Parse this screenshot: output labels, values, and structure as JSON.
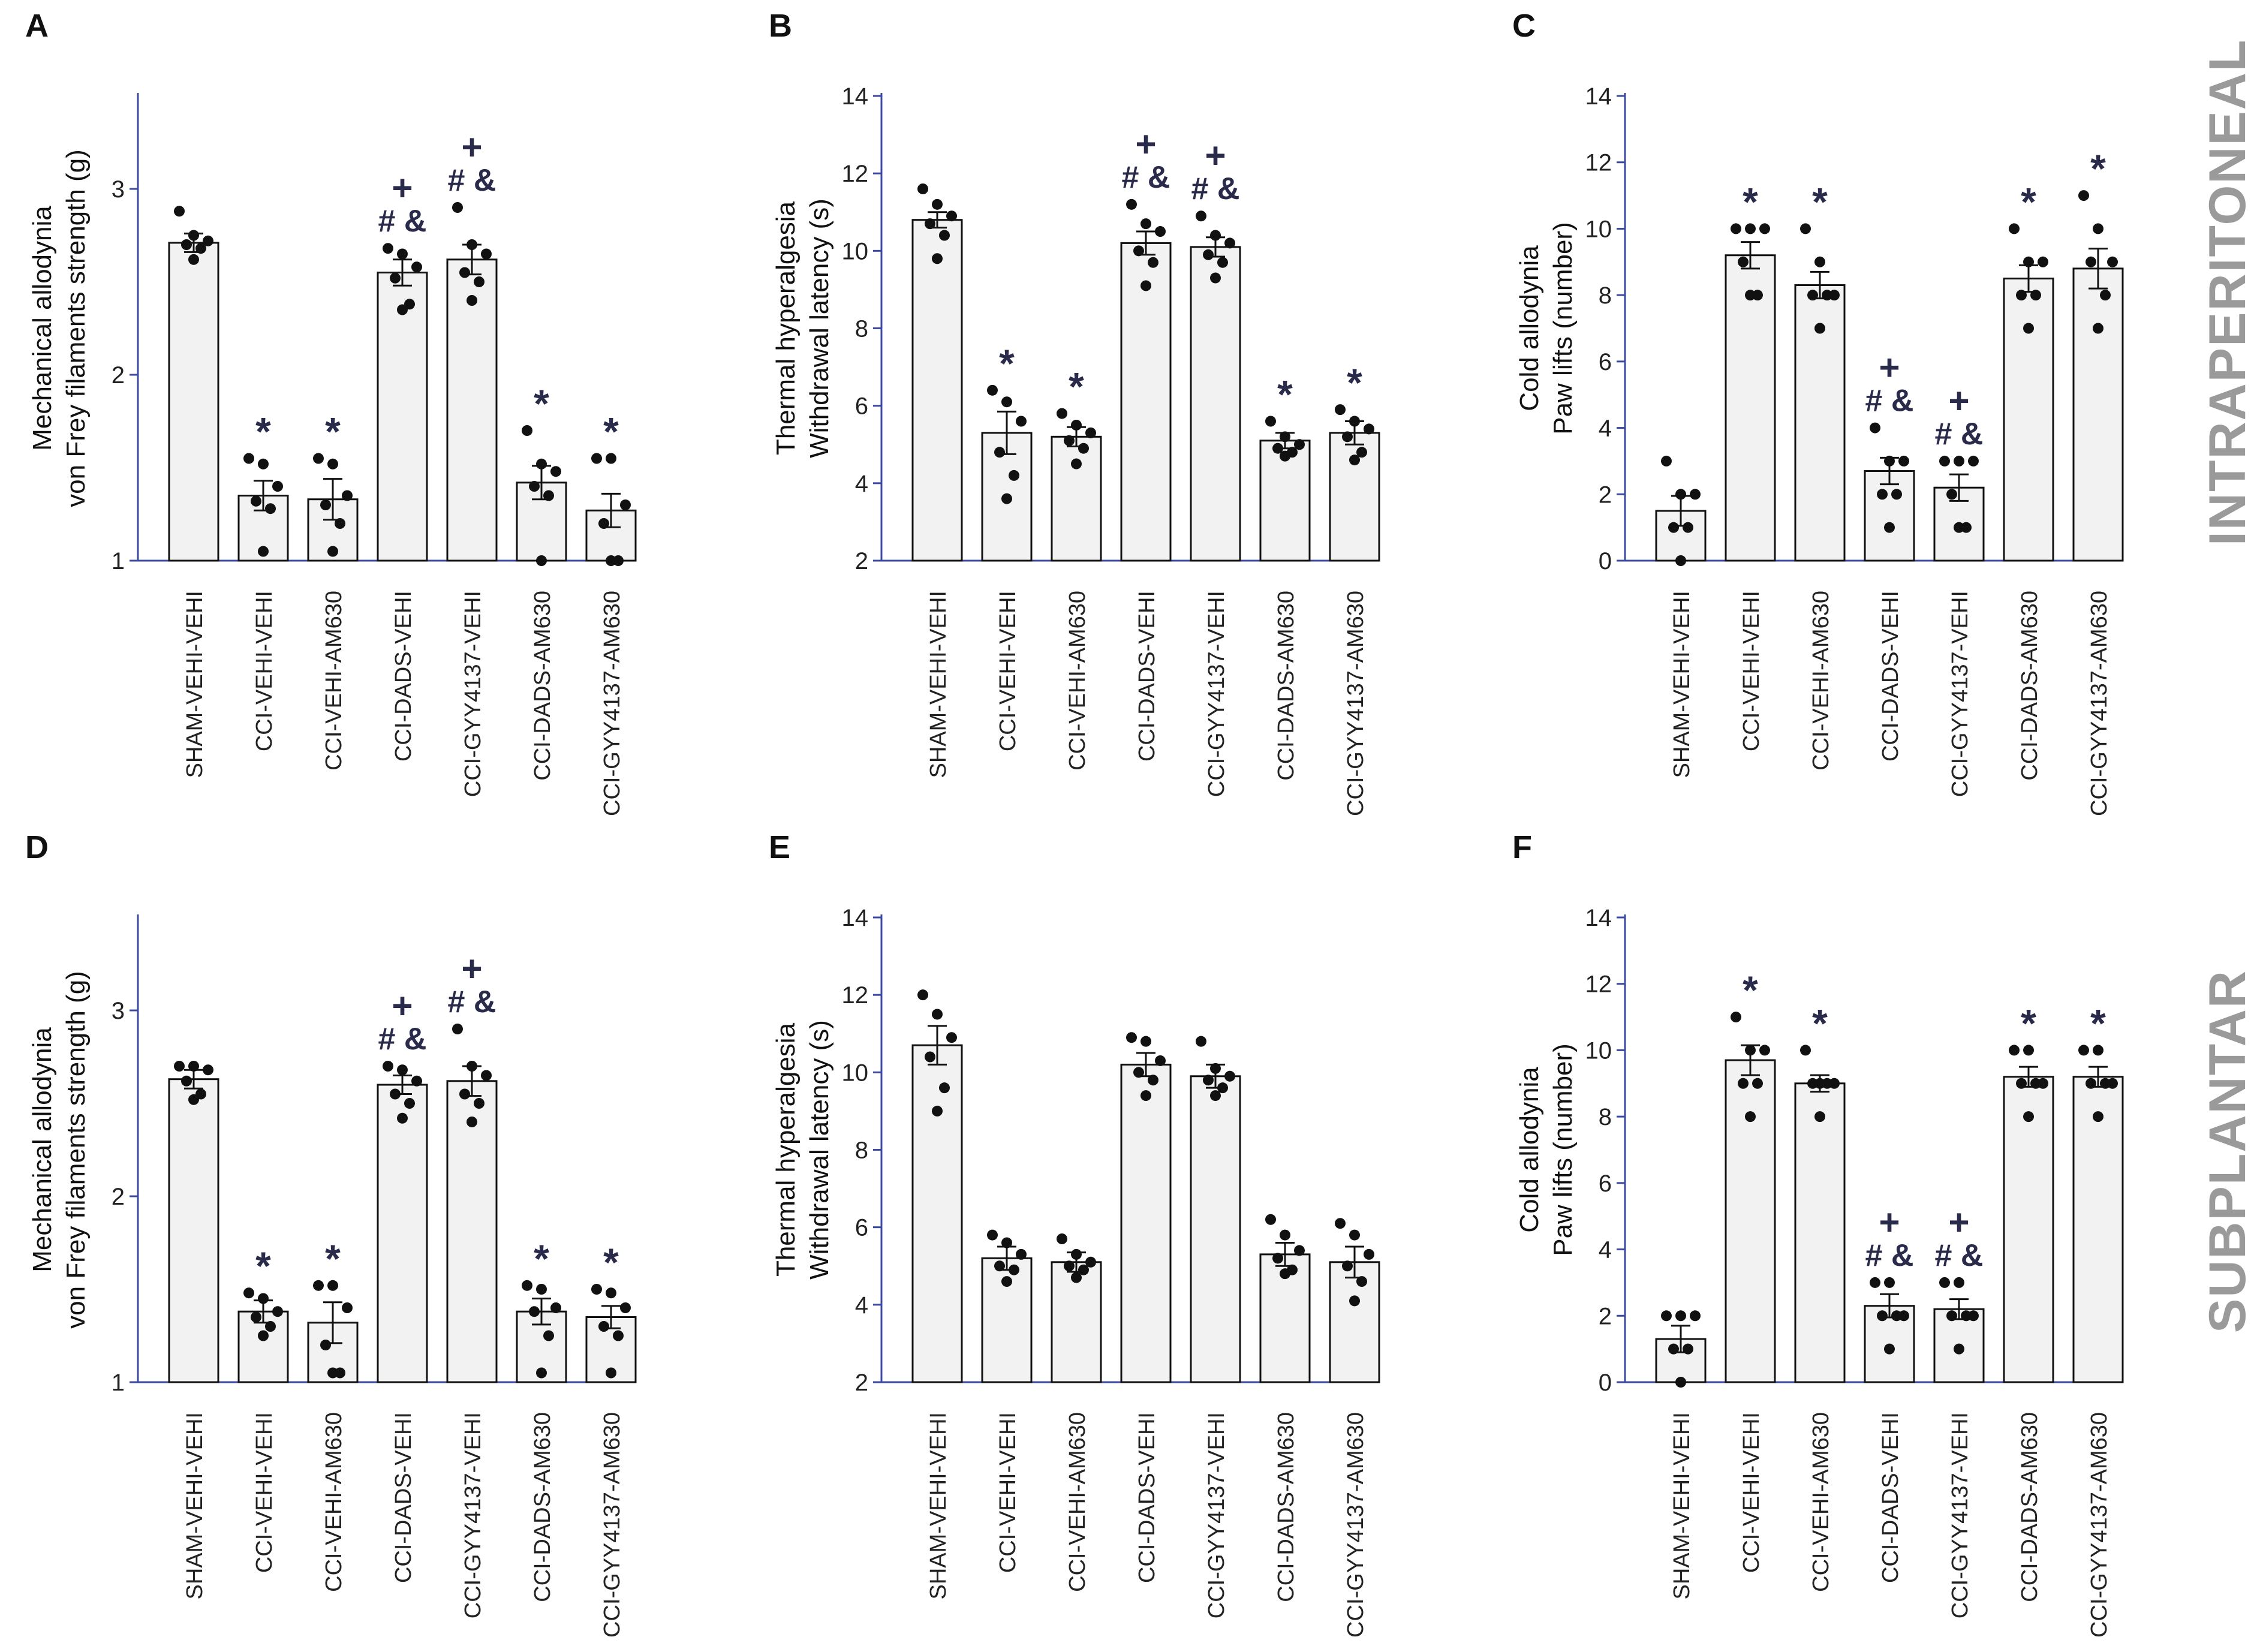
{
  "side_labels": {
    "top": "INTRAPERITONEAL",
    "bottom": "SUBPLANTAR"
  },
  "colors": {
    "axis": "#3b4aa0",
    "bar_fill": "#f2f2f2",
    "bar_stroke": "#111111",
    "marker": "#2a2a4a",
    "side_label": "#9a9a9a"
  },
  "chart_data": [
    {
      "panel": "A",
      "type": "bar",
      "ylabel": [
        "Mechanical allodynia",
        "von Frey filaments strength (g)"
      ],
      "ylim": [
        1,
        3.5
      ],
      "yticks": [
        1,
        2,
        3
      ],
      "categories": [
        "SHAM-VEHI-VEHI",
        "CCI-VEHI-VEHI",
        "CCI-VEHI-AM630",
        "CCI-DADS-VEHI",
        "CCI-GYY4137-VEHI",
        "CCI-DADS-AM630",
        "CCI-GYY4137-AM630"
      ],
      "values": [
        2.71,
        1.35,
        1.33,
        2.55,
        2.62,
        1.42,
        1.27
      ],
      "errors": [
        0.05,
        0.08,
        0.11,
        0.07,
        0.08,
        0.09,
        0.09
      ],
      "points": [
        [
          2.88,
          2.75,
          2.72,
          2.7,
          2.68,
          2.62
        ],
        [
          1.55,
          1.52,
          1.4,
          1.32,
          1.28,
          1.05
        ],
        [
          1.55,
          1.52,
          1.35,
          1.3,
          1.2,
          1.05
        ],
        [
          2.68,
          2.65,
          2.58,
          2.52,
          2.38,
          2.35
        ],
        [
          2.9,
          2.7,
          2.65,
          2.55,
          2.5,
          2.4
        ],
        [
          1.7,
          1.52,
          1.48,
          1.4,
          1.35,
          1.0
        ],
        [
          1.55,
          1.55,
          1.3,
          1.2,
          1.0,
          1.0
        ]
      ],
      "annotations": [
        "",
        "*",
        "*",
        "# & +",
        "# & +",
        "*",
        "*"
      ]
    },
    {
      "panel": "B",
      "type": "bar",
      "ylabel": [
        "Thermal hyperalgesia",
        "Withdrawal latency (s)"
      ],
      "ylim": [
        2,
        14
      ],
      "yticks": [
        2,
        4,
        6,
        8,
        10,
        12,
        14
      ],
      "categories": [
        "SHAM-VEHI-VEHI",
        "CCI-VEHI-VEHI",
        "CCI-VEHI-AM630",
        "CCI-DADS-VEHI",
        "CCI-GYY4137-VEHI",
        "CCI-DADS-AM630",
        "CCI-GYY4137-AM630"
      ],
      "values": [
        10.8,
        5.3,
        5.2,
        10.2,
        10.1,
        5.1,
        5.3
      ],
      "errors": [
        0.2,
        0.55,
        0.25,
        0.3,
        0.25,
        0.2,
        0.3
      ],
      "points": [
        [
          11.6,
          11.2,
          10.9,
          10.7,
          10.4,
          9.8
        ],
        [
          6.4,
          6.1,
          5.6,
          4.8,
          4.2,
          3.6
        ],
        [
          5.8,
          5.5,
          5.3,
          5.1,
          4.9,
          4.5
        ],
        [
          11.2,
          10.7,
          10.5,
          10.0,
          9.7,
          9.1
        ],
        [
          10.9,
          10.4,
          10.2,
          9.9,
          9.7,
          9.3
        ],
        [
          5.6,
          5.2,
          5.0,
          4.9,
          4.8,
          4.7
        ],
        [
          5.9,
          5.6,
          5.4,
          5.2,
          4.8,
          4.6
        ]
      ],
      "annotations": [
        "",
        "*",
        "*",
        "# & +",
        "# & +",
        "*",
        "*"
      ]
    },
    {
      "panel": "C",
      "type": "bar",
      "ylabel": [
        "Cold allodynia",
        "Paw lifts (number)"
      ],
      "ylim": [
        0,
        14
      ],
      "yticks": [
        0,
        2,
        4,
        6,
        8,
        10,
        12,
        14
      ],
      "categories": [
        "SHAM-VEHI-VEHI",
        "CCI-VEHI-VEHI",
        "CCI-VEHI-AM630",
        "CCI-DADS-VEHI",
        "CCI-GYY4137-VEHI",
        "CCI-DADS-AM630",
        "CCI-GYY4137-AM630"
      ],
      "values": [
        1.5,
        9.2,
        8.3,
        2.7,
        2.2,
        8.5,
        8.8
      ],
      "errors": [
        0.45,
        0.4,
        0.4,
        0.4,
        0.4,
        0.4,
        0.6
      ],
      "points": [
        [
          3.0,
          2.0,
          2.0,
          1.0,
          1.0,
          0.0
        ],
        [
          10.0,
          10.0,
          10.0,
          9.0,
          8.0,
          8.0
        ],
        [
          10.0,
          9.0,
          8.0,
          8.0,
          8.0,
          7.0
        ],
        [
          4.0,
          3.0,
          3.0,
          2.0,
          2.0,
          1.0
        ],
        [
          3.0,
          3.0,
          3.0,
          2.0,
          1.0,
          1.0
        ],
        [
          10.0,
          9.0,
          9.0,
          8.0,
          8.0,
          7.0
        ],
        [
          11.0,
          10.0,
          9.0,
          9.0,
          8.0,
          7.0
        ]
      ],
      "annotations": [
        "",
        "*",
        "*",
        "# & +",
        "# & +",
        "*",
        "*"
      ]
    },
    {
      "panel": "D",
      "type": "bar",
      "ylabel": [
        "Mechanical allodynia",
        "von Frey filaments strength (g)"
      ],
      "ylim": [
        1,
        3.5
      ],
      "yticks": [
        1,
        2,
        3
      ],
      "categories": [
        "SHAM-VEHI-VEHI",
        "CCI-VEHI-VEHI",
        "CCI-VEHI-AM630",
        "CCI-DADS-VEHI",
        "CCI-GYY4137-VEHI",
        "CCI-DADS-AM630",
        "CCI-GYY4137-AM630"
      ],
      "values": [
        2.63,
        1.38,
        1.32,
        2.6,
        2.62,
        1.38,
        1.35
      ],
      "errors": [
        0.05,
        0.06,
        0.11,
        0.05,
        0.08,
        0.07,
        0.06
      ],
      "points": [
        [
          2.7,
          2.7,
          2.68,
          2.62,
          2.55,
          2.52
        ],
        [
          1.48,
          1.45,
          1.38,
          1.35,
          1.3,
          1.25
        ],
        [
          1.52,
          1.52,
          1.4,
          1.2,
          1.05,
          1.05
        ],
        [
          2.7,
          2.68,
          2.62,
          2.55,
          2.5,
          2.42
        ],
        [
          2.9,
          2.7,
          2.65,
          2.55,
          2.5,
          2.4
        ],
        [
          1.52,
          1.5,
          1.4,
          1.38,
          1.25,
          1.05
        ],
        [
          1.5,
          1.48,
          1.4,
          1.3,
          1.25,
          1.05
        ]
      ],
      "annotations": [
        "",
        "*",
        "*",
        "# & +",
        "# & +",
        "*",
        "*"
      ]
    },
    {
      "panel": "E",
      "type": "bar",
      "ylabel": [
        "Thermal hyperalgesia",
        "Withdrawal latency (s)"
      ],
      "ylim": [
        2,
        14
      ],
      "yticks": [
        2,
        4,
        6,
        8,
        10,
        12,
        14
      ],
      "categories": [
        "SHAM-VEHI-VEHI",
        "CCI-VEHI-VEHI",
        "CCI-VEHI-AM630",
        "CCI-DADS-VEHI",
        "CCI-GYY4137-VEHI",
        "CCI-DADS-AM630",
        "CCI-GYY4137-AM630"
      ],
      "values": [
        10.7,
        5.2,
        5.1,
        10.2,
        9.9,
        5.3,
        5.1
      ],
      "errors": [
        0.5,
        0.3,
        0.25,
        0.3,
        0.3,
        0.3,
        0.4
      ],
      "points": [
        [
          12.0,
          11.5,
          10.9,
          10.4,
          9.6,
          9.0
        ],
        [
          5.8,
          5.6,
          5.3,
          5.0,
          4.9,
          4.6
        ],
        [
          5.7,
          5.3,
          5.1,
          5.0,
          4.9,
          4.7
        ],
        [
          10.9,
          10.8,
          10.3,
          10.0,
          9.8,
          9.4
        ],
        [
          10.8,
          10.1,
          9.9,
          9.8,
          9.6,
          9.4
        ],
        [
          6.2,
          5.8,
          5.4,
          5.2,
          4.9,
          4.8
        ],
        [
          6.1,
          5.8,
          5.3,
          5.0,
          4.6,
          4.1
        ]
      ],
      "annotations": [
        "",
        "",
        "",
        "",
        "",
        "",
        ""
      ]
    },
    {
      "panel": "F",
      "type": "bar",
      "ylabel": [
        "Cold allodynia",
        "Paw lifts (number)"
      ],
      "ylim": [
        0,
        14
      ],
      "yticks": [
        0,
        2,
        4,
        6,
        8,
        10,
        12,
        14
      ],
      "categories": [
        "SHAM-VEHI-VEHI",
        "CCI-VEHI-VEHI",
        "CCI-VEHI-AM630",
        "CCI-DADS-VEHI",
        "CCI-GYY4137-VEHI",
        "CCI-DADS-AM630",
        "CCI-GYY4137-AM630"
      ],
      "values": [
        1.3,
        9.7,
        9.0,
        2.3,
        2.2,
        9.2,
        9.2
      ],
      "errors": [
        0.4,
        0.45,
        0.25,
        0.35,
        0.3,
        0.3,
        0.3
      ],
      "points": [
        [
          2.0,
          2.0,
          2.0,
          1.0,
          1.0,
          0.0
        ],
        [
          11.0,
          10.0,
          10.0,
          9.0,
          9.0,
          8.0
        ],
        [
          10.0,
          9.0,
          9.0,
          9.0,
          9.0,
          8.0
        ],
        [
          3.0,
          3.0,
          2.0,
          2.0,
          2.0,
          1.0
        ],
        [
          3.0,
          3.0,
          2.0,
          2.0,
          2.0,
          1.0
        ],
        [
          10.0,
          10.0,
          9.0,
          9.0,
          9.0,
          8.0
        ],
        [
          10.0,
          10.0,
          9.0,
          9.0,
          9.0,
          8.0
        ]
      ],
      "annotations": [
        "",
        "*",
        "*",
        "# & +",
        "# & +",
        "*",
        "*"
      ]
    }
  ]
}
